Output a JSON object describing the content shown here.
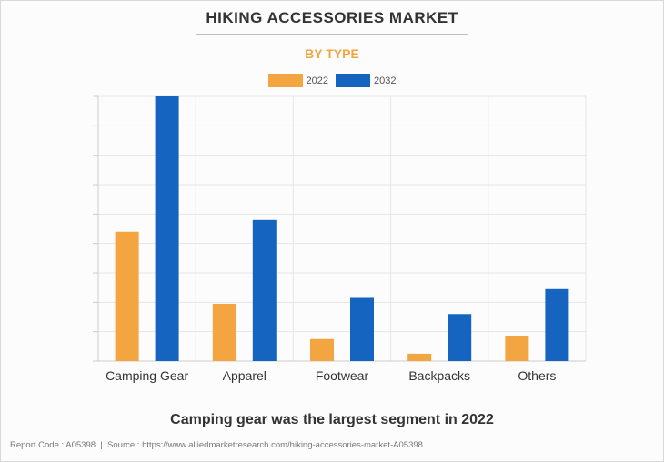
{
  "header": {
    "title": "HIKING ACCESSORIES MARKET",
    "subtitle": "BY TYPE"
  },
  "colors": {
    "series_2022": "#f2a541",
    "series_2032": "#1565c0"
  },
  "chart_data": {
    "type": "bar",
    "title": "HIKING ACCESSORIES MARKET",
    "subtitle": "BY TYPE",
    "categories": [
      "Camping Gear",
      "Apparel",
      "Footwear",
      "Backpacks",
      "Others"
    ],
    "series": [
      {
        "name": "2022",
        "color": "#f2a541",
        "values": [
          4.4,
          1.95,
          0.75,
          0.25,
          0.85
        ]
      },
      {
        "name": "2032",
        "color": "#1565c0",
        "values": [
          9.0,
          4.8,
          2.15,
          1.6,
          2.45
        ]
      }
    ],
    "ylim": [
      0,
      9
    ],
    "grid": true,
    "legend": "top-center",
    "xlabel": "",
    "ylabel": ""
  },
  "caption": "Camping gear was the largest segment in 2022",
  "footer": {
    "report_code": "Report Code : A05398",
    "separator": "|",
    "source": "Source : https://www.alliedmarketresearch.com/hiking-accessories-market-A05398"
  }
}
